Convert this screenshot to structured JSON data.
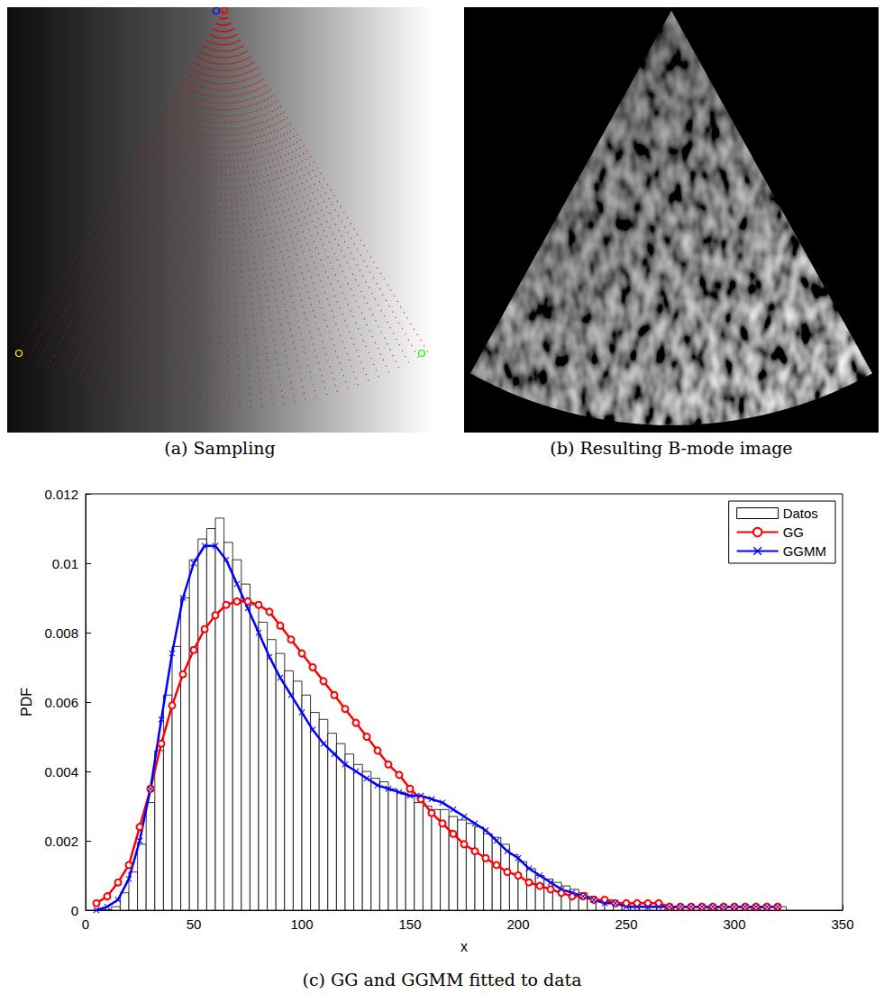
{
  "panels": [
    {
      "caption": "(a) Sampling"
    },
    {
      "caption": "(b) Resulting B-mode image"
    }
  ],
  "chart_data": {
    "type": "histogram",
    "title": "(c) GG and GGMM fitted to data",
    "xlabel": "x",
    "ylabel": "PDF",
    "xlim": [
      0,
      350
    ],
    "xticks": [
      0,
      50,
      100,
      150,
      200,
      250,
      300,
      350
    ],
    "ylim": [
      0,
      0.012
    ],
    "yticks": [
      0,
      0.002,
      0.004,
      0.006,
      0.008,
      0.01,
      0.012
    ],
    "grid": false,
    "legend": "top-right",
    "series": [
      {
        "name": "Datos",
        "type": "histogram",
        "color": "#ffffff",
        "bins": [
          4,
          8,
          12,
          16,
          20,
          24,
          28,
          32,
          36,
          40,
          44,
          48,
          52,
          56,
          60,
          64,
          68,
          72,
          76,
          80,
          84,
          88,
          92,
          96,
          100,
          104,
          108,
          112,
          116,
          120,
          124,
          128,
          132,
          136,
          140,
          144,
          148,
          152,
          156,
          160,
          164,
          168,
          172,
          176,
          180,
          184,
          188,
          192,
          196,
          200,
          204,
          208,
          212,
          216,
          220,
          224,
          228,
          232,
          236,
          240,
          244,
          248,
          252,
          256,
          260,
          264,
          268,
          272,
          276,
          280,
          284,
          288,
          292,
          296,
          300,
          304,
          308,
          312,
          316,
          320,
          324
        ],
        "values": [
          0,
          0,
          0.0001,
          0.0005,
          0.0011,
          0.0019,
          0.0031,
          0.0046,
          0.0062,
          0.0076,
          0.009,
          0.0101,
          0.0107,
          0.011,
          0.0113,
          0.0106,
          0.0101,
          0.0094,
          0.0088,
          0.0083,
          0.0078,
          0.0074,
          0.0069,
          0.0066,
          0.0062,
          0.0057,
          0.0055,
          0.0051,
          0.0048,
          0.0045,
          0.0042,
          0.004,
          0.0038,
          0.0037,
          0.0035,
          0.0034,
          0.0033,
          0.0031,
          0.003,
          0.0029,
          0.0029,
          0.0027,
          0.0026,
          0.0025,
          0.0024,
          0.0022,
          0.0021,
          0.0019,
          0.0016,
          0.0014,
          0.0012,
          0.001,
          0.0009,
          0.0008,
          0.0007,
          0.0006,
          0.0005,
          0.0004,
          0.0003,
          0.0003,
          0.0002,
          0.0002,
          0.0001,
          0.0001,
          0.0001,
          0.0001,
          0.0001,
          0.0001,
          0.0001,
          0.0001,
          0.0001,
          0.0001,
          0.0001,
          0.0001,
          0.0001,
          0.0001,
          0.0001,
          0.0001,
          0.0001,
          0.0001
        ]
      },
      {
        "name": "GG",
        "type": "line",
        "color": "#ff0000",
        "marker": "circle",
        "line_style": "solid",
        "x": [
          5,
          10,
          15,
          20,
          25,
          30,
          35,
          40,
          45,
          50,
          55,
          60,
          65,
          70,
          75,
          80,
          85,
          90,
          95,
          100,
          105,
          110,
          115,
          120,
          125,
          130,
          135,
          140,
          145,
          150,
          155,
          160,
          165,
          170,
          175,
          180,
          185,
          190,
          195,
          200,
          205,
          210,
          215,
          220,
          225,
          230,
          235,
          240,
          245,
          250,
          255,
          260,
          265,
          270,
          275,
          280,
          285,
          290,
          295,
          300,
          305,
          310,
          315,
          320
        ],
        "values": [
          0.0002,
          0.0004,
          0.0008,
          0.0013,
          0.0024,
          0.0035,
          0.0048,
          0.0059,
          0.0068,
          0.0075,
          0.0081,
          0.0085,
          0.0088,
          0.0089,
          0.0089,
          0.0088,
          0.0086,
          0.0082,
          0.0078,
          0.0074,
          0.007,
          0.0066,
          0.0062,
          0.0058,
          0.0054,
          0.005,
          0.0046,
          0.0042,
          0.0039,
          0.0035,
          0.0032,
          0.0028,
          0.0025,
          0.0022,
          0.0019,
          0.0017,
          0.0015,
          0.0013,
          0.0011,
          0.001,
          0.0008,
          0.0007,
          0.0006,
          0.0005,
          0.0004,
          0.0004,
          0.0003,
          0.0003,
          0.0002,
          0.0002,
          0.0002,
          0.0002,
          0.0002,
          0.0001,
          0.0001,
          0.0001,
          0.0001,
          0.0001,
          0.0001,
          0.0001,
          0.0001,
          0.0001,
          0.0001,
          0.0001
        ]
      },
      {
        "name": "GGMM",
        "type": "line",
        "color": "#0000ff",
        "marker": "x",
        "line_style": "solid",
        "x": [
          5,
          10,
          15,
          20,
          25,
          30,
          35,
          40,
          45,
          50,
          55,
          60,
          65,
          70,
          75,
          80,
          85,
          90,
          95,
          100,
          105,
          110,
          115,
          120,
          125,
          130,
          135,
          140,
          145,
          150,
          155,
          160,
          165,
          170,
          175,
          180,
          185,
          190,
          195,
          200,
          205,
          210,
          215,
          220,
          225,
          230,
          235,
          240,
          245,
          250,
          255,
          260,
          265,
          270,
          275,
          280,
          285,
          290,
          295,
          300,
          305,
          310,
          315,
          320
        ],
        "values": [
          0,
          0.0001,
          0.0003,
          0.0009,
          0.002,
          0.0035,
          0.0055,
          0.0074,
          0.009,
          0.01,
          0.0105,
          0.0105,
          0.0101,
          0.0094,
          0.0087,
          0.008,
          0.0073,
          0.0067,
          0.0062,
          0.0057,
          0.0052,
          0.0048,
          0.0045,
          0.0042,
          0.004,
          0.0038,
          0.0036,
          0.0035,
          0.0034,
          0.0033,
          0.0033,
          0.0032,
          0.0031,
          0.0029,
          0.0027,
          0.0025,
          0.0023,
          0.002,
          0.0017,
          0.0015,
          0.0012,
          0.001,
          0.0008,
          0.0006,
          0.0005,
          0.0004,
          0.0003,
          0.0002,
          0.0002,
          0.0001,
          0.0001,
          0.0001,
          0.0001,
          0.0001,
          0.0001,
          0.0001,
          0.0001,
          0.0001,
          0.0001,
          0.0001,
          0.0001,
          0.0001,
          0.0001,
          0.0001
        ]
      }
    ]
  }
}
